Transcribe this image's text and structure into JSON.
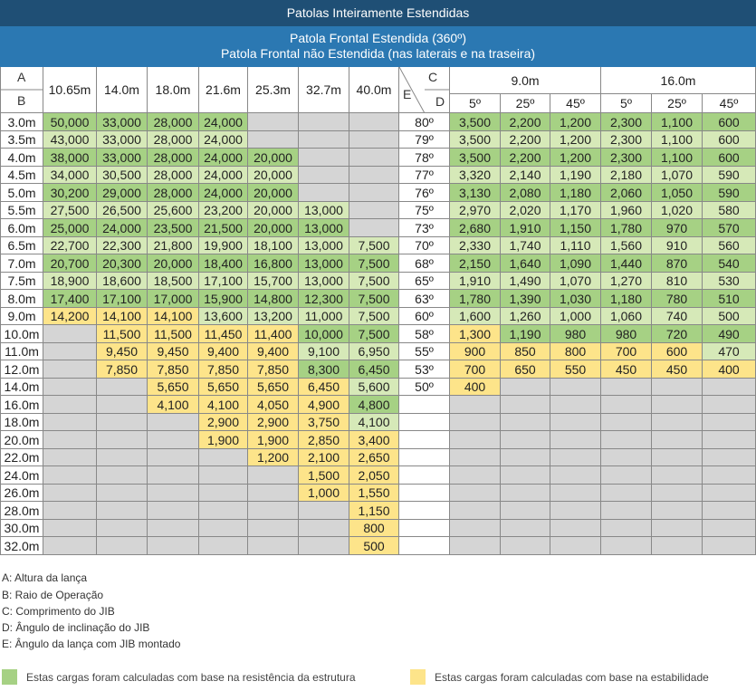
{
  "header": {
    "title": "Patolas Inteiramente Estendidas",
    "subtitle_line1": "Patola Frontal Estendida (360º)",
    "subtitle_line2": "Patola Frontal não Estendida (nas laterais e na traseira)"
  },
  "left_table": {
    "corner_a": "A",
    "corner_b": "B",
    "columns": [
      "10.65m",
      "14.0m",
      "18.0m",
      "21.6m",
      "25.3m",
      "32.7m",
      "40.0m"
    ],
    "rows": [
      {
        "radius": "3.0m",
        "values": [
          "50,000",
          "33,000",
          "28,000",
          "24,000",
          "",
          "",
          ""
        ],
        "colors": [
          "g",
          "g",
          "g",
          "g",
          "gr",
          "gr",
          "gr"
        ]
      },
      {
        "radius": "3.5m",
        "values": [
          "43,000",
          "33,000",
          "28,000",
          "24,000",
          "",
          "",
          ""
        ],
        "colors": [
          "lg",
          "lg",
          "lg",
          "lg",
          "gr",
          "gr",
          "gr"
        ]
      },
      {
        "radius": "4.0m",
        "values": [
          "38,000",
          "33,000",
          "28,000",
          "24,000",
          "20,000",
          "",
          ""
        ],
        "colors": [
          "g",
          "g",
          "g",
          "g",
          "g",
          "gr",
          "gr"
        ]
      },
      {
        "radius": "4.5m",
        "values": [
          "34,000",
          "30,500",
          "28,000",
          "24,000",
          "20,000",
          "",
          ""
        ],
        "colors": [
          "lg",
          "lg",
          "lg",
          "lg",
          "lg",
          "gr",
          "gr"
        ]
      },
      {
        "radius": "5.0m",
        "values": [
          "30,200",
          "29,000",
          "28,000",
          "24,000",
          "20,000",
          "",
          ""
        ],
        "colors": [
          "g",
          "g",
          "g",
          "g",
          "g",
          "gr",
          "gr"
        ]
      },
      {
        "radius": "5.5m",
        "values": [
          "27,500",
          "26,500",
          "25,600",
          "23,200",
          "20,000",
          "13,000",
          ""
        ],
        "colors": [
          "lg",
          "lg",
          "lg",
          "lg",
          "lg",
          "lg",
          "gr"
        ]
      },
      {
        "radius": "6.0m",
        "values": [
          "25,000",
          "24,000",
          "23,500",
          "21,500",
          "20,000",
          "13,000",
          ""
        ],
        "colors": [
          "g",
          "g",
          "g",
          "g",
          "g",
          "g",
          "gr"
        ]
      },
      {
        "radius": "6.5m",
        "values": [
          "22,700",
          "22,300",
          "21,800",
          "19,900",
          "18,100",
          "13,000",
          "7,500"
        ],
        "colors": [
          "lg",
          "lg",
          "lg",
          "lg",
          "lg",
          "lg",
          "lg"
        ]
      },
      {
        "radius": "7.0m",
        "values": [
          "20,700",
          "20,300",
          "20,000",
          "18,400",
          "16,800",
          "13,000",
          "7,500"
        ],
        "colors": [
          "g",
          "g",
          "g",
          "g",
          "g",
          "g",
          "g"
        ]
      },
      {
        "radius": "7.5m",
        "values": [
          "18,900",
          "18,600",
          "18,500",
          "17,100",
          "15,700",
          "13,000",
          "7,500"
        ],
        "colors": [
          "lg",
          "lg",
          "lg",
          "lg",
          "lg",
          "lg",
          "lg"
        ]
      },
      {
        "radius": "8.0m",
        "values": [
          "17,400",
          "17,100",
          "17,000",
          "15,900",
          "14,800",
          "12,300",
          "7,500"
        ],
        "colors": [
          "g",
          "g",
          "g",
          "g",
          "g",
          "g",
          "g"
        ]
      },
      {
        "radius": "9.0m",
        "values": [
          "14,200",
          "14,100",
          "14,100",
          "13,600",
          "13,200",
          "11,000",
          "7,500"
        ],
        "colors": [
          "y",
          "y",
          "y",
          "lg",
          "lg",
          "lg",
          "lg"
        ]
      },
      {
        "radius": "10.0m",
        "values": [
          "",
          "11,500",
          "11,500",
          "11,450",
          "11,400",
          "10,000",
          "7,500"
        ],
        "colors": [
          "gr",
          "y",
          "y",
          "y",
          "y",
          "g",
          "g"
        ]
      },
      {
        "radius": "11.0m",
        "values": [
          "",
          "9,450",
          "9,450",
          "9,400",
          "9,400",
          "9,100",
          "6,950"
        ],
        "colors": [
          "gr",
          "y",
          "y",
          "y",
          "y",
          "lg",
          "lg"
        ]
      },
      {
        "radius": "12.0m",
        "values": [
          "",
          "7,850",
          "7,850",
          "7,850",
          "7,850",
          "8,300",
          "6,450"
        ],
        "colors": [
          "gr",
          "y",
          "y",
          "y",
          "y",
          "g",
          "g"
        ]
      },
      {
        "radius": "14.0m",
        "values": [
          "",
          "",
          "5,650",
          "5,650",
          "5,650",
          "6,450",
          "5,600"
        ],
        "colors": [
          "gr",
          "gr",
          "y",
          "y",
          "y",
          "y",
          "lg"
        ]
      },
      {
        "radius": "16.0m",
        "values": [
          "",
          "",
          "4,100",
          "4,100",
          "4,050",
          "4,900",
          "4,800"
        ],
        "colors": [
          "gr",
          "gr",
          "y",
          "y",
          "y",
          "y",
          "g"
        ]
      },
      {
        "radius": "18.0m",
        "values": [
          "",
          "",
          "",
          "2,900",
          "2,900",
          "3,750",
          "4,100"
        ],
        "colors": [
          "gr",
          "gr",
          "gr",
          "y",
          "y",
          "y",
          "lg"
        ]
      },
      {
        "radius": "20.0m",
        "values": [
          "",
          "",
          "",
          "1,900",
          "1,900",
          "2,850",
          "3,400"
        ],
        "colors": [
          "gr",
          "gr",
          "gr",
          "y",
          "y",
          "y",
          "y"
        ]
      },
      {
        "radius": "22.0m",
        "values": [
          "",
          "",
          "",
          "",
          "1,200",
          "2,100",
          "2,650"
        ],
        "colors": [
          "gr",
          "gr",
          "gr",
          "gr",
          "y",
          "y",
          "y"
        ]
      },
      {
        "radius": "24.0m",
        "values": [
          "",
          "",
          "",
          "",
          "",
          "1,500",
          "2,050"
        ],
        "colors": [
          "gr",
          "gr",
          "gr",
          "gr",
          "gr",
          "y",
          "y"
        ]
      },
      {
        "radius": "26.0m",
        "values": [
          "",
          "",
          "",
          "",
          "",
          "1,000",
          "1,550"
        ],
        "colors": [
          "gr",
          "gr",
          "gr",
          "gr",
          "gr",
          "y",
          "y"
        ]
      },
      {
        "radius": "28.0m",
        "values": [
          "",
          "",
          "",
          "",
          "",
          "",
          "1,150"
        ],
        "colors": [
          "gr",
          "gr",
          "gr",
          "gr",
          "gr",
          "gr",
          "y"
        ]
      },
      {
        "radius": "30.0m",
        "values": [
          "",
          "",
          "",
          "",
          "",
          "",
          "800"
        ],
        "colors": [
          "gr",
          "gr",
          "gr",
          "gr",
          "gr",
          "gr",
          "y"
        ]
      },
      {
        "radius": "32.0m",
        "values": [
          "",
          "",
          "",
          "",
          "",
          "",
          "500"
        ],
        "colors": [
          "gr",
          "gr",
          "gr",
          "gr",
          "gr",
          "gr",
          "y"
        ]
      }
    ]
  },
  "right_table": {
    "corner_c": "C",
    "corner_d": "D",
    "corner_e": "E",
    "jib_lengths": [
      "9.0m",
      "16.0m"
    ],
    "offsets": [
      "5º",
      "25º",
      "45º",
      "5º",
      "25º",
      "45º"
    ],
    "rows": [
      {
        "angle": "80º",
        "values": [
          "3,500",
          "2,200",
          "1,200",
          "2,300",
          "1,100",
          "600"
        ],
        "colors": [
          "g",
          "g",
          "g",
          "g",
          "g",
          "g"
        ]
      },
      {
        "angle": "79º",
        "values": [
          "3,500",
          "2,200",
          "1,200",
          "2,300",
          "1,100",
          "600"
        ],
        "colors": [
          "lg",
          "lg",
          "lg",
          "lg",
          "lg",
          "lg"
        ]
      },
      {
        "angle": "78º",
        "values": [
          "3,500",
          "2,200",
          "1,200",
          "2,300",
          "1,100",
          "600"
        ],
        "colors": [
          "g",
          "g",
          "g",
          "g",
          "g",
          "g"
        ]
      },
      {
        "angle": "77º",
        "values": [
          "3,320",
          "2,140",
          "1,190",
          "2,180",
          "1,070",
          "590"
        ],
        "colors": [
          "lg",
          "lg",
          "lg",
          "lg",
          "lg",
          "lg"
        ]
      },
      {
        "angle": "76º",
        "values": [
          "3,130",
          "2,080",
          "1,180",
          "2,060",
          "1,050",
          "590"
        ],
        "colors": [
          "g",
          "g",
          "g",
          "g",
          "g",
          "g"
        ]
      },
      {
        "angle": "75º",
        "values": [
          "2,970",
          "2,020",
          "1,170",
          "1,960",
          "1,020",
          "580"
        ],
        "colors": [
          "lg",
          "lg",
          "lg",
          "lg",
          "lg",
          "lg"
        ]
      },
      {
        "angle": "73º",
        "values": [
          "2,680",
          "1,910",
          "1,150",
          "1,780",
          "970",
          "570"
        ],
        "colors": [
          "g",
          "g",
          "g",
          "g",
          "g",
          "g"
        ]
      },
      {
        "angle": "70º",
        "values": [
          "2,330",
          "1,740",
          "1,110",
          "1,560",
          "910",
          "560"
        ],
        "colors": [
          "lg",
          "lg",
          "lg",
          "lg",
          "lg",
          "lg"
        ]
      },
      {
        "angle": "68º",
        "values": [
          "2,150",
          "1,640",
          "1,090",
          "1,440",
          "870",
          "540"
        ],
        "colors": [
          "g",
          "g",
          "g",
          "g",
          "g",
          "g"
        ]
      },
      {
        "angle": "65º",
        "values": [
          "1,910",
          "1,490",
          "1,070",
          "1,270",
          "810",
          "530"
        ],
        "colors": [
          "lg",
          "lg",
          "lg",
          "lg",
          "lg",
          "lg"
        ]
      },
      {
        "angle": "63º",
        "values": [
          "1,780",
          "1,390",
          "1,030",
          "1,180",
          "780",
          "510"
        ],
        "colors": [
          "g",
          "g",
          "g",
          "g",
          "g",
          "g"
        ]
      },
      {
        "angle": "60º",
        "values": [
          "1,600",
          "1,260",
          "1,000",
          "1,060",
          "740",
          "500"
        ],
        "colors": [
          "lg",
          "lg",
          "lg",
          "lg",
          "lg",
          "lg"
        ]
      },
      {
        "angle": "58º",
        "values": [
          "1,300",
          "1,190",
          "980",
          "980",
          "720",
          "490"
        ],
        "colors": [
          "y",
          "g",
          "g",
          "g",
          "g",
          "g"
        ]
      },
      {
        "angle": "55º",
        "values": [
          "900",
          "850",
          "800",
          "700",
          "600",
          "470"
        ],
        "colors": [
          "y",
          "y",
          "y",
          "y",
          "y",
          "lg"
        ]
      },
      {
        "angle": "53º",
        "values": [
          "700",
          "650",
          "550",
          "450",
          "450",
          "400"
        ],
        "colors": [
          "y",
          "y",
          "y",
          "y",
          "y",
          "y"
        ]
      },
      {
        "angle": "50º",
        "values": [
          "400",
          "",
          "",
          "",
          "",
          ""
        ],
        "colors": [
          "y",
          "gr",
          "gr",
          "gr",
          "gr",
          "gr"
        ]
      }
    ]
  },
  "legend": {
    "items": [
      {
        "key": "A:",
        "text": " Altura da lança"
      },
      {
        "key": "B:",
        "text": " Raio de Operação"
      },
      {
        "key": "C:",
        "text": " Comprimento do JIB"
      },
      {
        "key": "D:",
        "text": " Ângulo de inclinação do JIB"
      },
      {
        "key": "E:",
        "text": " Ângulo da lança com JIB montado"
      }
    ],
    "structure_text": "Estas cargas foram calculadas com base na resistência da estrutura",
    "stability_text": "Estas cargas foram calculadas com base na estabilidade",
    "structure_color": "#a6d184",
    "stability_color": "#fde48a"
  }
}
